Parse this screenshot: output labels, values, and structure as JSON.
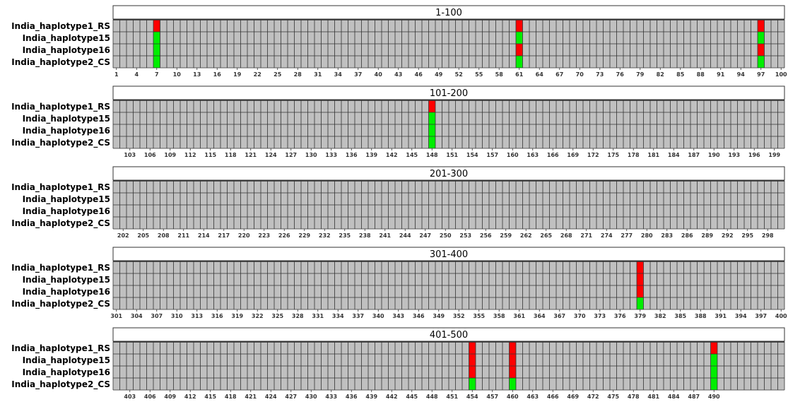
{
  "chart_data": {
    "type": "heatmap",
    "rows": [
      "India_haplotype1_RS",
      "India_haplotype15",
      "India_haplotype16",
      "India_haplotype2_CS"
    ],
    "colors": {
      "default": "#c0c0c0",
      "red": "#ff0000",
      "green": "#00ee00"
    },
    "panels": [
      {
        "title": "1-100",
        "start": 1,
        "end": 100,
        "tick_start": 1,
        "tick_step": 3,
        "highlights": [
          {
            "position": 7,
            "colors": [
              "red",
              "green",
              "green",
              "green"
            ]
          },
          {
            "position": 61,
            "colors": [
              "red",
              "green",
              "red",
              "green"
            ]
          },
          {
            "position": 97,
            "colors": [
              "red",
              "green",
              "red",
              "green"
            ]
          }
        ]
      },
      {
        "title": "101-200",
        "start": 101,
        "end": 200,
        "tick_start": 103,
        "tick_step": 3,
        "highlights": [
          {
            "position": 148,
            "colors": [
              "red",
              "green",
              "green",
              "green"
            ]
          }
        ]
      },
      {
        "title": "201-300",
        "start": 201,
        "end": 300,
        "tick_start": 202,
        "tick_step": 3,
        "highlights": []
      },
      {
        "title": "301-400",
        "start": 301,
        "end": 400,
        "tick_start": 301,
        "tick_step": 3,
        "highlights": [
          {
            "position": 379,
            "colors": [
              "red",
              "red",
              "red",
              "green"
            ]
          }
        ]
      },
      {
        "title": "401-500",
        "start": 401,
        "end": 490,
        "tick_start": 403,
        "tick_step": 3,
        "highlights": [
          {
            "position": 454,
            "colors": [
              "red",
              "red",
              "red",
              "green"
            ]
          },
          {
            "position": 460,
            "colors": [
              "red",
              "red",
              "red",
              "green"
            ]
          },
          {
            "position": 490,
            "colors": [
              "red",
              "green",
              "green",
              "green"
            ]
          }
        ]
      }
    ]
  }
}
